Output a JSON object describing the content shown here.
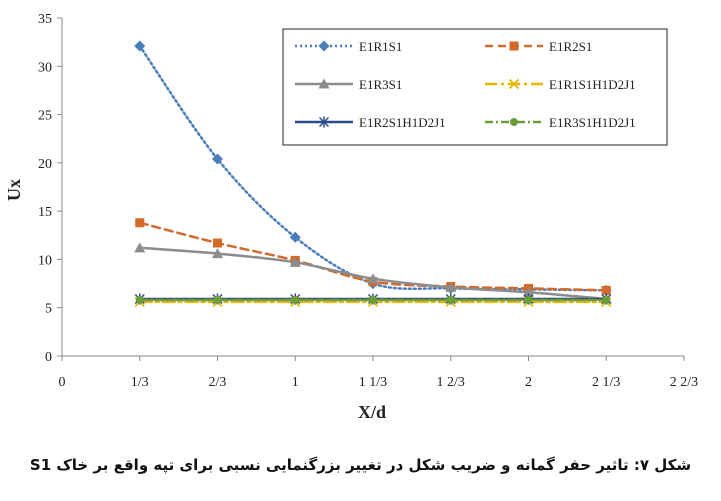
{
  "chart_data": {
    "type": "line",
    "title": "",
    "xlabel": "X/d",
    "ylabel": "Ux",
    "xlim": [
      0,
      2.6667
    ],
    "ylim": [
      0,
      35
    ],
    "xticks": [
      {
        "value": 0,
        "label": "0"
      },
      {
        "value": 0.3333,
        "label": "1/3"
      },
      {
        "value": 0.6667,
        "label": "2/3"
      },
      {
        "value": 1,
        "label": "1"
      },
      {
        "value": 1.3333,
        "label": "1 1/3"
      },
      {
        "value": 1.6667,
        "label": "1 2/3"
      },
      {
        "value": 2,
        "label": "2"
      },
      {
        "value": 2.3333,
        "label": "2 1/3"
      },
      {
        "value": 2.6667,
        "label": "2 2/3"
      }
    ],
    "yticks": [
      0,
      5,
      10,
      15,
      20,
      25,
      30,
      35
    ],
    "grid": false,
    "legend_position": "top-right",
    "x": [
      0.3333,
      0.6667,
      1.0,
      1.3333,
      1.6667,
      2.0,
      2.3333
    ],
    "series": [
      {
        "name": "E1R1S1",
        "values": [
          32.1,
          20.4,
          12.3,
          7.5,
          7.0,
          6.9,
          6.8
        ],
        "color": "#4a7ebb",
        "dash": "2,3",
        "marker": "diamond"
      },
      {
        "name": "E1R2S1",
        "values": [
          13.8,
          11.7,
          9.9,
          7.7,
          7.2,
          7.0,
          6.8
        ],
        "color": "#d16a2a",
        "dash": "8,5",
        "marker": "square"
      },
      {
        "name": "E1R3S1",
        "values": [
          11.2,
          10.6,
          9.7,
          8.0,
          7.1,
          6.6,
          5.9
        ],
        "color": "#8c8c8c",
        "dash": "",
        "marker": "triangle"
      },
      {
        "name": "E1R1S1H1D2J1",
        "values": [
          5.6,
          5.6,
          5.6,
          5.6,
          5.6,
          5.6,
          5.6
        ],
        "color": "#e6b800",
        "dash": "12,4,3,4",
        "marker": "x"
      },
      {
        "name": "E1R2S1H1D2J1",
        "values": [
          5.9,
          5.9,
          5.9,
          5.9,
          5.9,
          5.9,
          5.9
        ],
        "color": "#2e4d8a",
        "dash": "",
        "marker": "star"
      },
      {
        "name": "E1R3S1H1D2J1",
        "values": [
          5.8,
          5.8,
          5.8,
          5.8,
          5.8,
          5.8,
          5.8
        ],
        "color": "#6b9e3a",
        "dash": "8,3,2,3",
        "marker": "circle"
      }
    ]
  },
  "caption": "شکل ۷: تاثیر حفر گمانه و ضریب شکل در تغییر بزرگنمایی نسبی برای تپه واقع بر خاک S1"
}
